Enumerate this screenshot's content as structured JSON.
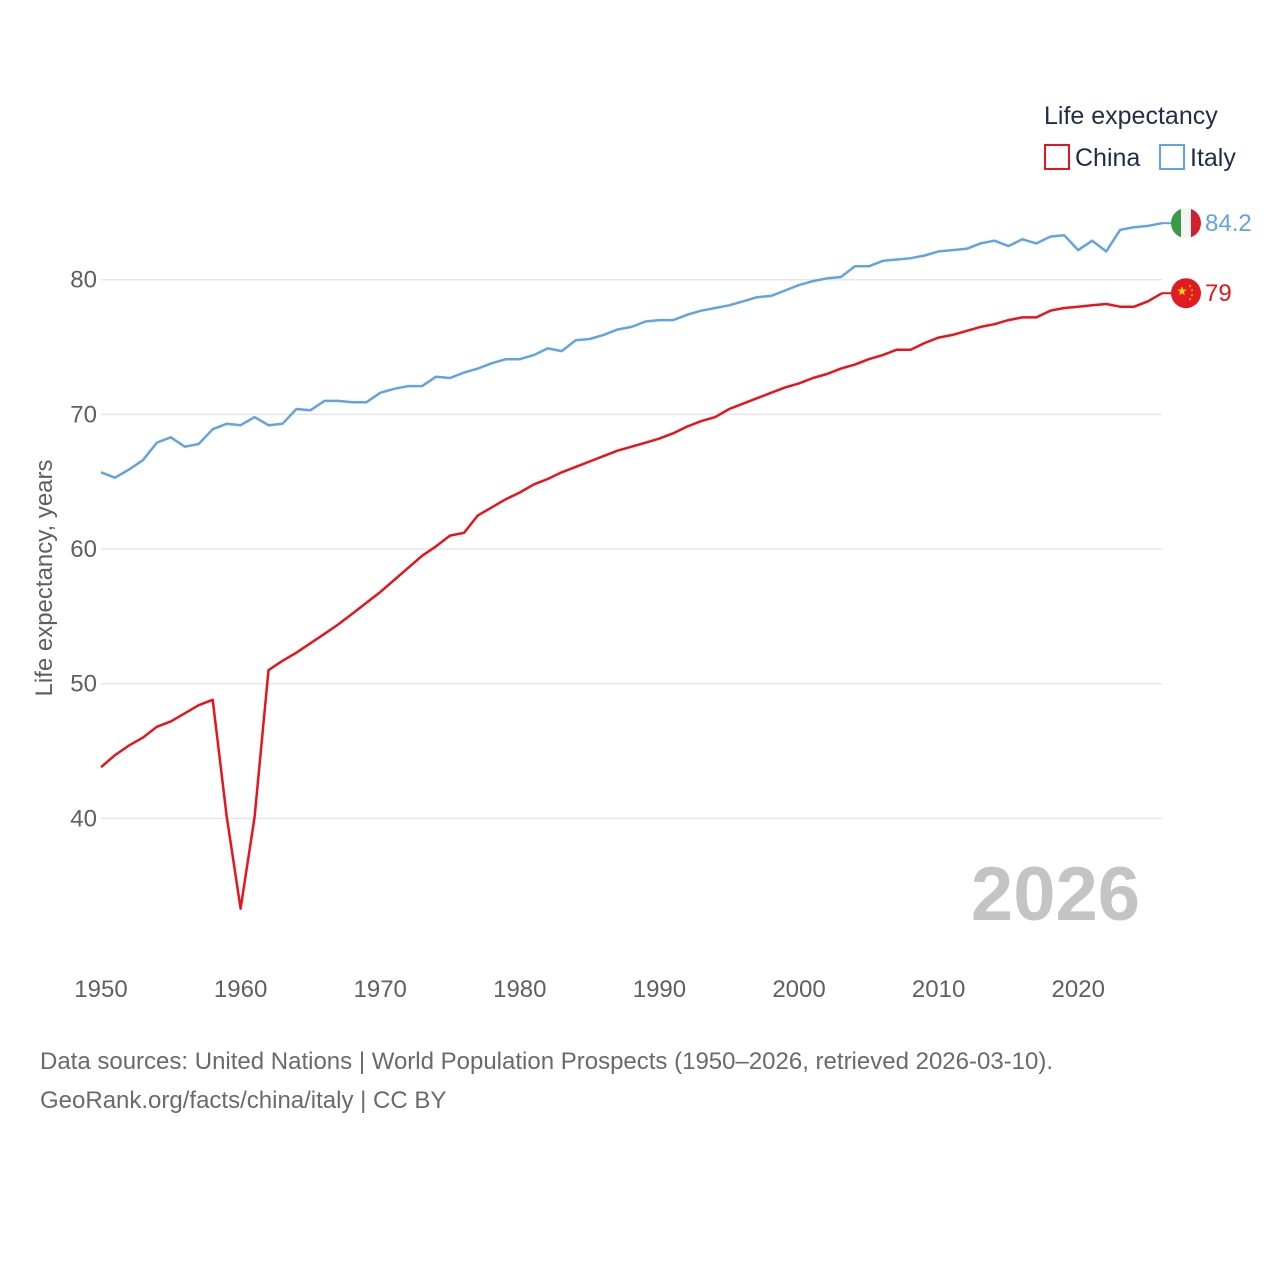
{
  "chart_data": {
    "type": "line",
    "title": "",
    "legend_title": "Life expectancy",
    "legend_position": "top-right",
    "ylabel": "Life expectancy, years",
    "xlabel": "",
    "xlim": [
      1950,
      2026
    ],
    "ylim": [
      30,
      88
    ],
    "x_ticks": [
      1950,
      1960,
      1970,
      1980,
      1990,
      2000,
      2010,
      2020
    ],
    "y_ticks": [
      40,
      50,
      60,
      70,
      80
    ],
    "grid": true,
    "watermark_year": "2026",
    "x": [
      1950,
      1951,
      1952,
      1953,
      1954,
      1955,
      1956,
      1957,
      1958,
      1959,
      1960,
      1961,
      1962,
      1963,
      1964,
      1965,
      1966,
      1967,
      1968,
      1969,
      1970,
      1971,
      1972,
      1973,
      1974,
      1975,
      1976,
      1977,
      1978,
      1979,
      1980,
      1981,
      1982,
      1983,
      1984,
      1985,
      1986,
      1987,
      1988,
      1989,
      1990,
      1991,
      1992,
      1993,
      1994,
      1995,
      1996,
      1997,
      1998,
      1999,
      2000,
      2001,
      2002,
      2003,
      2004,
      2005,
      2006,
      2007,
      2008,
      2009,
      2010,
      2011,
      2012,
      2013,
      2014,
      2015,
      2016,
      2017,
      2018,
      2019,
      2020,
      2021,
      2022,
      2023,
      2024,
      2025,
      2026
    ],
    "series": [
      {
        "name": "China",
        "color": "#e8141c",
        "flag_icon": "china-flag-icon",
        "end_label": "79",
        "values": [
          43.8,
          44.7,
          45.4,
          46.0,
          46.8,
          47.2,
          47.8,
          48.4,
          48.8,
          40.2,
          33.3,
          40.1,
          51.0,
          51.7,
          52.3,
          53.0,
          53.7,
          54.4,
          55.2,
          56.0,
          56.8,
          57.7,
          58.6,
          59.5,
          60.2,
          61.0,
          61.2,
          62.5,
          63.1,
          63.7,
          64.2,
          64.8,
          65.2,
          65.7,
          66.1,
          66.5,
          66.9,
          67.3,
          67.6,
          67.9,
          68.2,
          68.6,
          69.1,
          69.5,
          69.8,
          70.4,
          70.8,
          71.2,
          71.6,
          72.0,
          72.3,
          72.7,
          73.0,
          73.4,
          73.7,
          74.1,
          74.4,
          74.8,
          74.8,
          75.3,
          75.7,
          75.9,
          76.2,
          76.5,
          76.7,
          77.0,
          77.2,
          77.2,
          77.7,
          77.9,
          78.0,
          78.1,
          78.2,
          78.0,
          78.0,
          78.4,
          79.0
        ]
      },
      {
        "name": "Italy",
        "color": "#62a4e2",
        "flag_icon": "italy-flag-icon",
        "end_label": "84.2",
        "values": [
          65.7,
          65.3,
          65.9,
          66.6,
          67.9,
          68.3,
          67.6,
          67.8,
          68.9,
          69.3,
          69.2,
          69.8,
          69.2,
          69.3,
          70.4,
          70.3,
          71.0,
          71.0,
          70.9,
          70.9,
          71.6,
          71.9,
          72.1,
          72.1,
          72.8,
          72.7,
          73.1,
          73.4,
          73.8,
          74.1,
          74.1,
          74.4,
          74.9,
          74.7,
          75.5,
          75.6,
          75.9,
          76.3,
          76.5,
          76.9,
          77.0,
          77.0,
          77.4,
          77.7,
          77.9,
          78.1,
          78.4,
          78.7,
          78.8,
          79.2,
          79.6,
          79.9,
          80.1,
          80.2,
          81.0,
          81.0,
          81.4,
          81.5,
          81.6,
          81.8,
          82.1,
          82.2,
          82.3,
          82.7,
          82.9,
          82.5,
          83.0,
          82.7,
          83.2,
          83.3,
          82.2,
          82.9,
          82.1,
          83.7,
          83.9,
          84.0,
          84.2
        ]
      }
    ]
  },
  "source": {
    "line1": "Data sources: United Nations | World Population Prospects (1950–2026, retrieved 2026-03-10).",
    "line2": "GeoRank.org/facts/china/italy | CC BY"
  }
}
